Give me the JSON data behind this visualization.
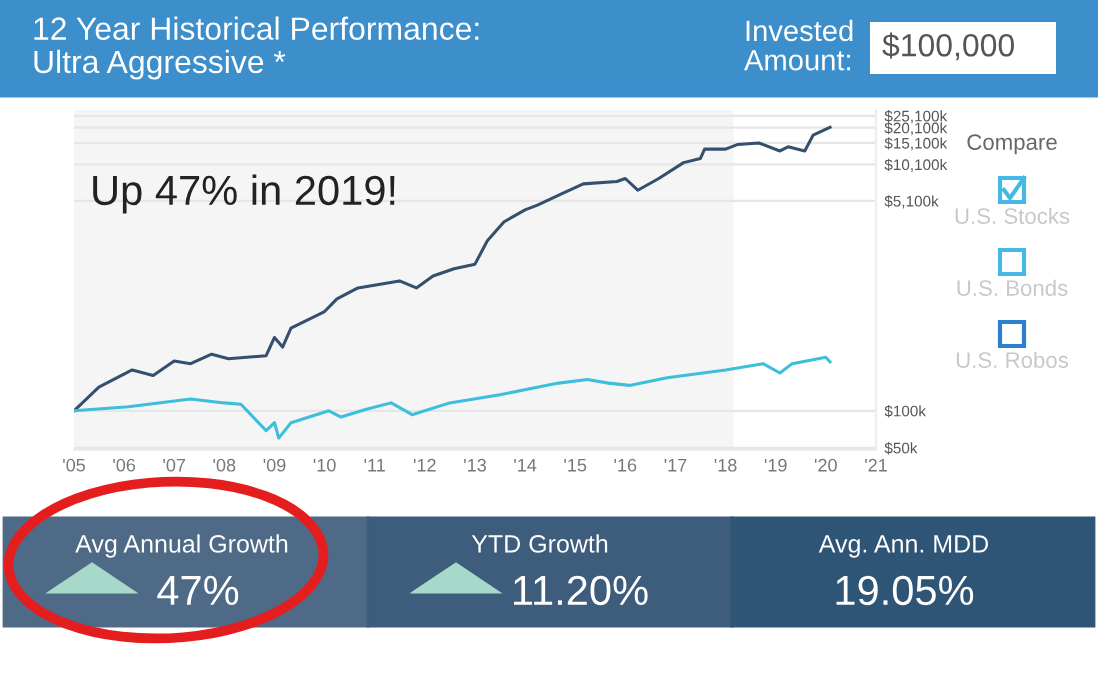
{
  "chart_data": {
    "type": "line",
    "title": "12 Year Historical Performance:\nUltra Aggressive *",
    "annotations": [
      "Invested\nAmount:",
      "$100,000",
      "Up 47% in 2019!",
      "Compare",
      "U.S. Stocks",
      "U.S. Bonds",
      "U.S. Robos",
      "Avg Annual Growth",
      "47%",
      "YTD Growth",
      "11.20%",
      "Avg. Ann. MDD",
      "19.05%"
    ],
    "series": [
      {
        "color": "#34506e",
        "x": [
          "2005-01",
          "2005-07",
          "2006-03",
          "2006-08",
          "2007-01",
          "2007-05",
          "2007-10",
          "2008-02",
          "2008-11",
          "2009-01",
          "2009-03",
          "2009-05",
          "2010-01",
          "2010-04",
          "2010-09",
          "2011-07",
          "2011-11",
          "2012-03",
          "2012-08",
          "2013-01",
          "2013-04",
          "2013-08",
          "2014-01",
          "2014-04",
          "2014-10",
          "2015-03",
          "2015-11",
          "2016-01",
          "2016-04",
          "2016-09",
          "2017-03",
          "2017-07",
          "2017-08",
          "2018-01",
          "2018-04",
          "2018-09",
          "2019-02",
          "2019-04",
          "2019-08",
          "2019-10",
          "2020-02"
        ],
        "values": [
          100000,
          156000,
          215000,
          194000,
          254000,
          242000,
          289000,
          265000,
          281000,
          395000,
          330000,
          471000,
          642000,
          813000,
          1000000,
          1140000,
          1000000,
          1250000,
          1430000,
          1560000,
          2420000,
          3450000,
          4310000,
          4710000,
          5880000,
          7020000,
          7330000,
          7760000,
          6230000,
          7760000,
          10450000,
          11270000,
          13450000,
          13450000,
          14700000,
          15100000,
          13000000,
          14060000,
          13000000,
          17500000,
          20300000
        ]
      },
      {
        "color": "#3dbfdc",
        "x": [
          "2005-01",
          "2006-02",
          "2007-05",
          "2008-01",
          "2008-05",
          "2008-11",
          "2009-01",
          "2009-02",
          "2009-05",
          "2010-02",
          "2010-05",
          "2010-11",
          "2011-05",
          "2011-10",
          "2012-07",
          "2013-07",
          "2014-09",
          "2015-04",
          "2015-09",
          "2016-02",
          "2016-11",
          "2018-01",
          "2018-10",
          "2019-02",
          "2019-05",
          "2020-01",
          "2020-02"
        ],
        "values": [
          100000,
          108000,
          125000,
          116000,
          113000,
          69000,
          80000,
          60000,
          80000,
          100000,
          89000,
          103000,
          116000,
          93000,
          116000,
          135000,
          168000,
          180000,
          168000,
          161000,
          186000,
          215000,
          242000,
          203000,
          242000,
          273000,
          250000
        ]
      }
    ],
    "log": true,
    "xlim": [
      "2005-01",
      "2021-01"
    ],
    "xticks": [
      {
        "value": "2005",
        "label": "'05"
      },
      {
        "value": "2006",
        "label": "'06"
      },
      {
        "value": "2007",
        "label": "'07"
      },
      {
        "value": "2008",
        "label": "'08"
      },
      {
        "value": "2009",
        "label": "'09"
      },
      {
        "value": "2010",
        "label": "'10"
      },
      {
        "value": "2011",
        "label": "'11"
      },
      {
        "value": "2012",
        "label": "'12"
      },
      {
        "value": "2013",
        "label": "'13"
      },
      {
        "value": "2014",
        "label": "'14"
      },
      {
        "value": "2015",
        "label": "'15"
      },
      {
        "value": "2016",
        "label": "'16"
      },
      {
        "value": "2017",
        "label": "'17"
      },
      {
        "value": "2018",
        "label": "'18"
      },
      {
        "value": "2019",
        "label": "'19"
      },
      {
        "value": "2020",
        "label": "'20"
      },
      {
        "value": "2021",
        "label": "'21"
      }
    ],
    "ylim": [
      48000,
      28000000
    ],
    "yticks": [
      {
        "value": 50000,
        "label": "$50k"
      },
      {
        "value": 100000,
        "label": "$100k"
      },
      {
        "value": 5100000,
        "label": "$5,100k"
      },
      {
        "value": 10100000,
        "label": "$10,100k"
      },
      {
        "value": 15100000,
        "label": "$15,100k"
      },
      {
        "value": 20100000,
        "label": "$20,100k"
      },
      {
        "value": 25100000,
        "label": "$25,100k"
      }
    ],
    "grid": "y",
    "bands": [
      {
        "axis": "x",
        "from": "2005-01",
        "to": "2018-03",
        "color": "#f5f5f5"
      }
    ]
  }
}
